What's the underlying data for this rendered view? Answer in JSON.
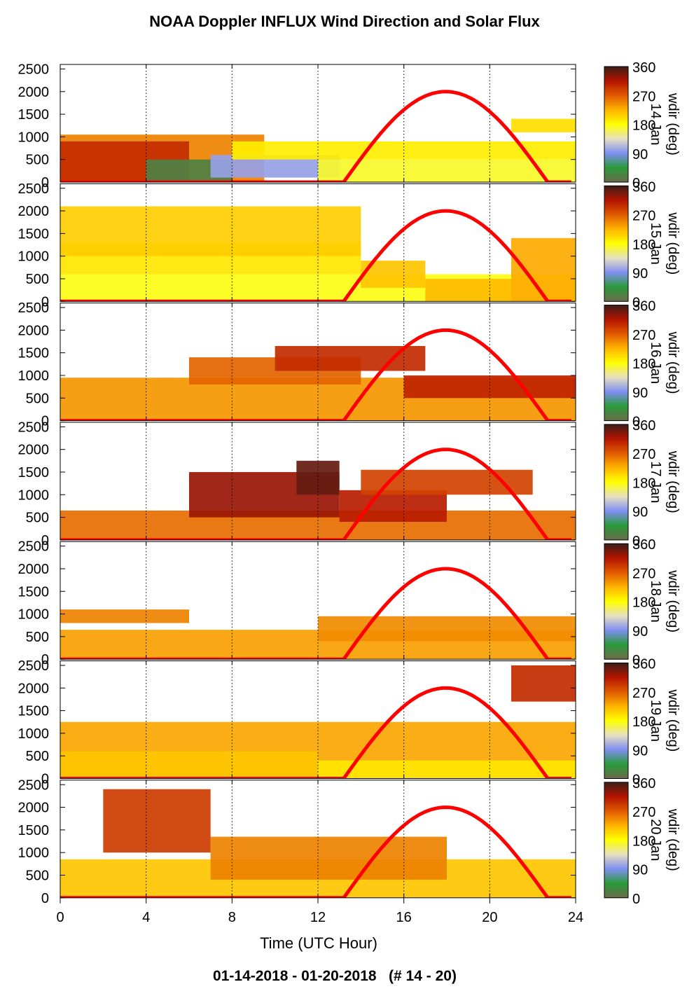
{
  "chart_data": {
    "type": "heatmap",
    "title": "NOAA Doppler INFLUX Wind Direction and Solar Flux",
    "xlabel": "Time (UTC Hour)",
    "date_range": "01-14-2018 - 01-20-2018   (# 14 - 20)",
    "x_ticks": [
      0,
      4,
      8,
      12,
      16,
      20,
      24
    ],
    "y_ticks": [
      0,
      500,
      1000,
      1500,
      2000,
      2500
    ],
    "xlim": [
      0,
      24
    ],
    "ylim": [
      0,
      2600
    ],
    "grid": "vertical dotted",
    "colorbar": {
      "label": "wdir (deg)",
      "ticks": [
        0,
        90,
        180,
        270,
        360
      ],
      "colors": [
        "#6b6b4a",
        "#2a9a3a",
        "#7f8ff2",
        "#e6e0c0",
        "#ffff00",
        "#ffb400",
        "#e05a00",
        "#b41400",
        "#3c1e18"
      ]
    },
    "solar_flux": {
      "color": "#ff0000",
      "sunrise_hour": 13.2,
      "sunset_hour": 22.7,
      "peak_hour": 17.9,
      "peak_on_axis": 2000
    },
    "panels": [
      {
        "day_label": "14 Jan",
        "regions": [
          {
            "t0": 0,
            "t1": 9.5,
            "h0": 0,
            "h1": 1050,
            "wdir": 250
          },
          {
            "t0": 0,
            "t1": 6,
            "h0": 0,
            "h1": 900,
            "wdir": 300
          },
          {
            "t0": 4,
            "t1": 8,
            "h0": 0,
            "h1": 500,
            "wdir": 20
          },
          {
            "t0": 7,
            "t1": 13,
            "h0": 100,
            "h1": 600,
            "wdir": 100
          },
          {
            "t0": 8,
            "t1": 24,
            "h0": 500,
            "h1": 900,
            "wdir": 190
          },
          {
            "t0": 12,
            "t1": 24,
            "h0": 0,
            "h1": 500,
            "wdir": 170
          },
          {
            "t0": 21,
            "t1": 24,
            "h0": 1100,
            "h1": 1400,
            "wdir": 200
          }
        ]
      },
      {
        "day_label": "15 Jan",
        "regions": [
          {
            "t0": 0,
            "t1": 24,
            "h0": 0,
            "h1": 600,
            "wdir": 175
          },
          {
            "t0": 0,
            "t1": 14,
            "h0": 600,
            "h1": 1300,
            "wdir": 195
          },
          {
            "t0": 0,
            "t1": 14,
            "h0": 1000,
            "h1": 2100,
            "wdir": 210
          },
          {
            "t0": 14,
            "t1": 17,
            "h0": 300,
            "h1": 900,
            "wdir": 215
          },
          {
            "t0": 17,
            "t1": 21,
            "h0": 0,
            "h1": 500,
            "wdir": 220
          },
          {
            "t0": 21,
            "t1": 24,
            "h0": 0,
            "h1": 1400,
            "wdir": 230
          }
        ]
      },
      {
        "day_label": "16 Jan",
        "regions": [
          {
            "t0": 0,
            "t1": 24,
            "h0": 0,
            "h1": 950,
            "wdir": 240
          },
          {
            "t0": 6,
            "t1": 14,
            "h0": 800,
            "h1": 1400,
            "wdir": 265
          },
          {
            "t0": 10,
            "t1": 17,
            "h0": 1100,
            "h1": 1650,
            "wdir": 300
          },
          {
            "t0": 16,
            "t1": 24,
            "h0": 500,
            "h1": 1000,
            "wdir": 305
          }
        ]
      },
      {
        "day_label": "17 Jan",
        "regions": [
          {
            "t0": 0,
            "t1": 24,
            "h0": 0,
            "h1": 650,
            "wdir": 260
          },
          {
            "t0": 6,
            "t1": 13,
            "h0": 500,
            "h1": 1500,
            "wdir": 325
          },
          {
            "t0": 11,
            "t1": 13,
            "h0": 1000,
            "h1": 1750,
            "wdir": 345
          },
          {
            "t0": 13,
            "t1": 18,
            "h0": 400,
            "h1": 1100,
            "wdir": 310
          },
          {
            "t0": 14,
            "t1": 22,
            "h0": 1000,
            "h1": 1550,
            "wdir": 285
          }
        ]
      },
      {
        "day_label": "18 Jan",
        "regions": [
          {
            "t0": 0,
            "t1": 24,
            "h0": 0,
            "h1": 650,
            "wdir": 235
          },
          {
            "t0": 12,
            "t1": 24,
            "h0": 400,
            "h1": 950,
            "wdir": 245
          },
          {
            "t0": 0,
            "t1": 6,
            "h0": 800,
            "h1": 1100,
            "wdir": 250
          }
        ]
      },
      {
        "day_label": "19 Jan",
        "regions": [
          {
            "t0": 0,
            "t1": 24,
            "h0": 0,
            "h1": 1250,
            "wdir": 232
          },
          {
            "t0": 0,
            "t1": 12,
            "h0": 0,
            "h1": 600,
            "wdir": 215
          },
          {
            "t0": 12,
            "t1": 24,
            "h0": 0,
            "h1": 400,
            "wdir": 195
          },
          {
            "t0": 21,
            "t1": 24,
            "h0": 1700,
            "h1": 2500,
            "wdir": 300
          }
        ]
      },
      {
        "day_label": "20 Jan",
        "regions": [
          {
            "t0": 0,
            "t1": 24,
            "h0": 0,
            "h1": 850,
            "wdir": 215
          },
          {
            "t0": 7,
            "t1": 18,
            "h0": 400,
            "h1": 1350,
            "wdir": 250
          },
          {
            "t0": 2,
            "t1": 7,
            "h0": 1000,
            "h1": 2400,
            "wdir": 290
          }
        ]
      }
    ]
  }
}
